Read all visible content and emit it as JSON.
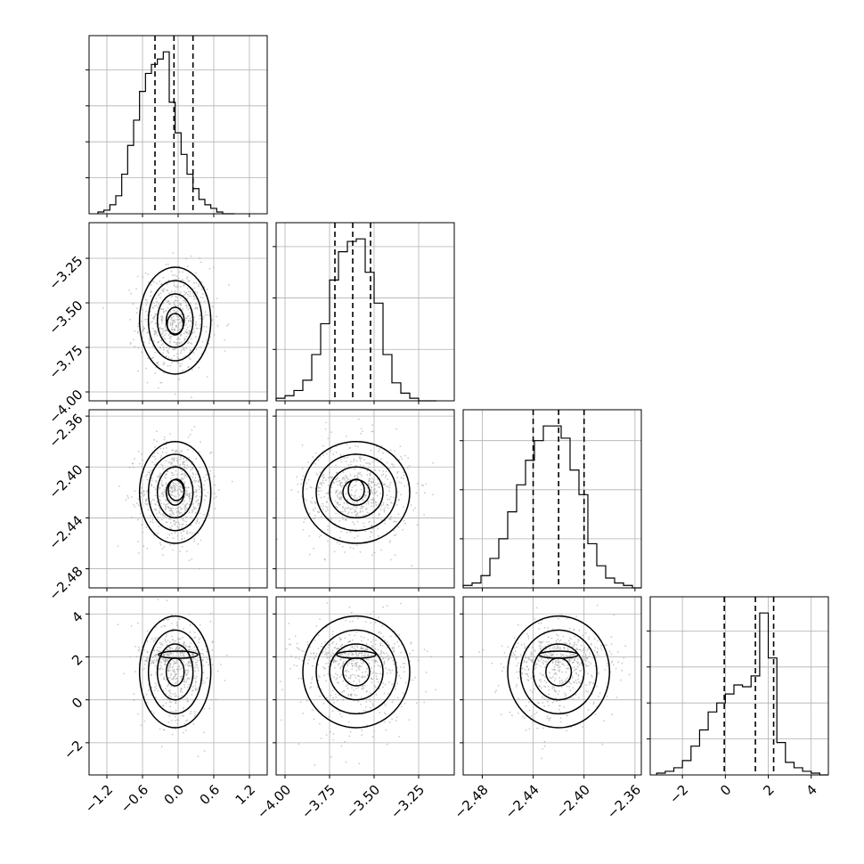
{
  "chart_data": {
    "type": "corner",
    "params": [
      {
        "range": [
          -1.5,
          1.5
        ],
        "ticks": [
          -1.2,
          -0.6,
          0.0,
          0.6,
          1.2
        ],
        "tick_labels": [
          "−1.2",
          "−0.6",
          "0.0",
          "0.6",
          "1.2"
        ],
        "quantiles": [
          -0.39,
          -0.07,
          0.25
        ],
        "hist": {
          "edges": [
            -1.35,
            -1.25,
            -1.15,
            -1.05,
            -0.95,
            -0.85,
            -0.75,
            -0.65,
            -0.55,
            -0.45,
            -0.35,
            -0.25,
            -0.15,
            -0.05,
            0.05,
            0.15,
            0.25,
            0.35,
            0.45,
            0.55,
            0.65,
            0.75,
            0.85,
            0.95
          ],
          "counts": [
            1,
            2,
            5,
            10,
            22,
            38,
            52,
            68,
            78,
            83,
            86,
            90,
            62,
            45,
            33,
            22,
            14,
            8,
            5,
            3,
            1,
            0,
            0
          ]
        },
        "hist_ticks": [
          20,
          40,
          60,
          80
        ]
      },
      {
        "range": [
          -4.05,
          -3.05
        ],
        "ticks": [
          -4.0,
          -3.75,
          -3.5,
          -3.25
        ],
        "tick_labels": [
          "−4.00",
          "−3.75",
          "−3.50",
          "−3.25"
        ],
        "quantiles": [
          -3.72,
          -3.62,
          -3.52
        ],
        "hist": {
          "edges": [
            -4.05,
            -4.0,
            -3.95,
            -3.9,
            -3.85,
            -3.8,
            -3.75,
            -3.7,
            -3.65,
            -3.6,
            -3.55,
            -3.5,
            -3.45,
            -3.4,
            -3.35,
            -3.3,
            -3.25,
            -3.2,
            -3.15
          ],
          "counts": [
            1,
            2,
            4,
            8,
            18,
            30,
            47,
            58,
            62,
            63,
            50,
            38,
            18,
            7,
            3,
            1,
            0,
            0
          ]
        },
        "hist_ticks": [
          20,
          40,
          60
        ]
      },
      {
        "range": [
          -2.495,
          -2.355
        ],
        "ticks": [
          -2.48,
          -2.44,
          -2.4,
          -2.36
        ],
        "tick_labels": [
          "−2.48",
          "−2.44",
          "−2.40",
          "−2.36"
        ],
        "quantiles": [
          -2.44,
          -2.42,
          -2.4
        ],
        "hist": {
          "edges": [
            -2.495,
            -2.488,
            -2.481,
            -2.474,
            -2.467,
            -2.46,
            -2.453,
            -2.446,
            -2.439,
            -2.432,
            -2.425,
            -2.418,
            -2.411,
            -2.404,
            -2.397,
            -2.39,
            -2.383,
            -2.376,
            -2.369,
            -2.362,
            -2.355
          ],
          "counts": [
            1,
            2,
            5,
            12,
            20,
            31,
            42,
            52,
            60,
            66,
            66,
            61,
            48,
            38,
            18,
            9,
            4,
            2,
            1,
            0
          ]
        },
        "hist_ticks": [
          20,
          40,
          60
        ]
      },
      {
        "range": [
          -3.5,
          4.8
        ],
        "ticks": [
          -2,
          0,
          2,
          4
        ],
        "tick_labels": [
          "−2",
          "0",
          "2",
          "4"
        ],
        "quantiles": [
          -0.05,
          1.4,
          2.25
        ],
        "hist": {
          "edges": [
            -3.2,
            -2.8,
            -2.4,
            -2.0,
            -1.6,
            -1.2,
            -0.8,
            -0.4,
            0.0,
            0.4,
            0.8,
            1.2,
            1.6,
            2.0,
            2.4,
            2.8,
            3.2,
            3.6,
            4.0,
            4.4,
            4.8
          ],
          "counts": [
            1,
            2,
            4,
            8,
            16,
            25,
            35,
            40,
            45,
            50,
            49,
            55,
            90,
            65,
            18,
            7,
            4,
            2,
            1,
            0
          ]
        },
        "hist_ticks": [
          20,
          40,
          60,
          80
        ]
      }
    ],
    "pair_blobs": [
      {
        "row": 1,
        "col": 0,
        "mean": [
          -0.05,
          -3.6
        ],
        "sd": [
          0.3,
          0.15
        ],
        "peak": [
          -0.05,
          -3.62
        ]
      },
      {
        "row": 2,
        "col": 0,
        "mean": [
          -0.05,
          -2.42
        ],
        "sd": [
          0.3,
          0.02
        ],
        "peak": [
          -0.03,
          -2.418
        ]
      },
      {
        "row": 2,
        "col": 1,
        "mean": [
          -3.6,
          -2.42
        ],
        "sd": [
          0.15,
          0.02
        ],
        "peak": [
          -3.6,
          -2.418
        ]
      },
      {
        "row": 3,
        "col": 0,
        "mean": [
          -0.05,
          1.3
        ],
        "sd": [
          0.3,
          1.3
        ],
        "peak": [
          0.0,
          2.1
        ]
      },
      {
        "row": 3,
        "col": 1,
        "mean": [
          -3.6,
          1.3
        ],
        "sd": [
          0.15,
          1.3
        ],
        "peak": [
          -3.6,
          2.1
        ]
      },
      {
        "row": 3,
        "col": 2,
        "mean": [
          -2.42,
          1.3
        ],
        "sd": [
          0.02,
          1.3
        ],
        "peak": [
          -2.42,
          2.1
        ]
      }
    ],
    "grid": true,
    "colors": {
      "points": "#9e9e9e",
      "line": "#000000",
      "grid": "#b0b0b0"
    }
  }
}
